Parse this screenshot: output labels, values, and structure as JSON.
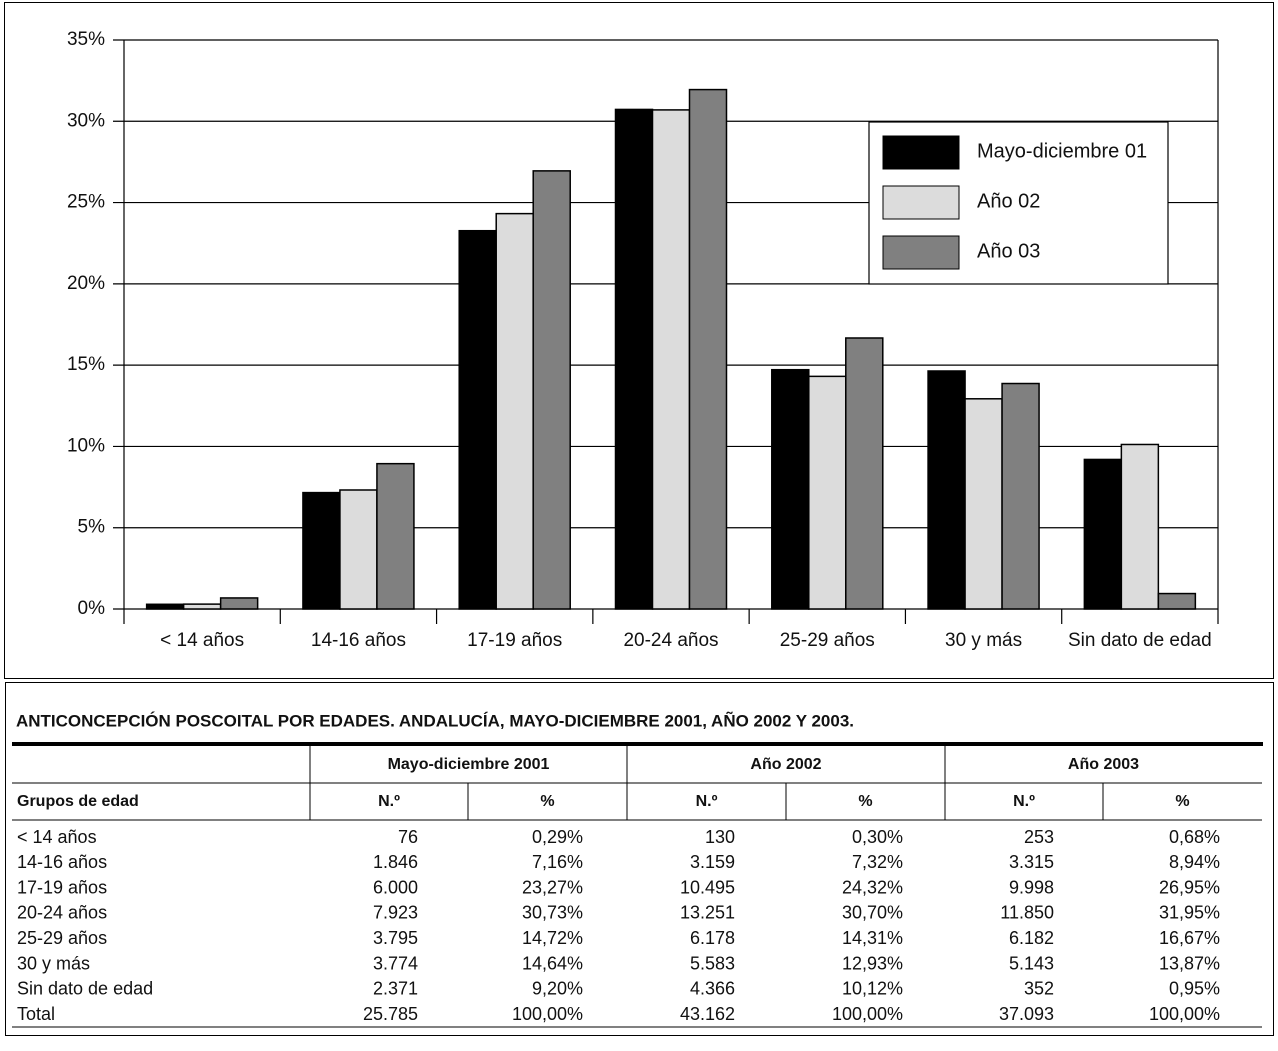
{
  "chart_data": {
    "type": "bar",
    "categories": [
      "< 14 años",
      "14-16 años",
      "17-19 años",
      "20-24 años",
      "25-29 años",
      "30 y más",
      "Sin dato de edad"
    ],
    "series": [
      {
        "name": "Mayo-diciembre 01",
        "color": "#000000",
        "values": [
          0.29,
          7.16,
          23.27,
          30.73,
          14.72,
          14.64,
          9.2
        ]
      },
      {
        "name": "Año 02",
        "color": "#dcdcdc",
        "values": [
          0.3,
          7.32,
          24.32,
          30.7,
          14.31,
          12.93,
          10.12
        ]
      },
      {
        "name": "Año 03",
        "color": "#808080",
        "values": [
          0.68,
          8.94,
          26.95,
          31.95,
          16.67,
          13.87,
          0.95
        ]
      }
    ],
    "ylim": [
      0,
      35
    ],
    "yticks": [
      {
        "value": 0,
        "label": "0%"
      },
      {
        "value": 5,
        "label": "5%"
      },
      {
        "value": 10,
        "label": "10%"
      },
      {
        "value": 15,
        "label": "15%"
      },
      {
        "value": 20,
        "label": "20%"
      },
      {
        "value": 25,
        "label": "25%"
      },
      {
        "value": 30,
        "label": "30%"
      },
      {
        "value": 35,
        "label": "35%"
      }
    ],
    "grid": true,
    "legend": "upper right"
  },
  "table": {
    "title": "ANTICONCEPCIÓN POSCOITAL POR EDADES. ANDALUCÍA, MAYO-DICIEMBRE 2001, AÑO 2002 Y 2003.",
    "group_headers": [
      "Mayo-diciembre 2001",
      "Año 2002",
      "Año 2003"
    ],
    "sub_headers": [
      "Grupos de edad",
      "N.º",
      "%",
      "N.º",
      "%",
      "N.º",
      "%"
    ],
    "rows": [
      [
        "< 14 años",
        "76",
        "0,29%",
        "130",
        "0,30%",
        "253",
        "0,68%"
      ],
      [
        "14-16 años",
        "1.846",
        "7,16%",
        "3.159",
        "7,32%",
        "3.315",
        "8,94%"
      ],
      [
        "17-19 años",
        "6.000",
        "23,27%",
        "10.495",
        "24,32%",
        "9.998",
        "26,95%"
      ],
      [
        "20-24 años",
        "7.923",
        "30,73%",
        "13.251",
        "30,70%",
        "11.850",
        "31,95%"
      ],
      [
        "25-29 años",
        "3.795",
        "14,72%",
        "6.178",
        "14,31%",
        "6.182",
        "16,67%"
      ],
      [
        "30 y más",
        "3.774",
        "14,64%",
        "5.583",
        "12,93%",
        "5.143",
        "13,87%"
      ],
      [
        "Sin dato de edad",
        "2.371",
        "9,20%",
        "4.366",
        "10,12%",
        "352",
        "0,95%"
      ],
      [
        "Total",
        "25.785",
        "100,00%",
        "43.162",
        "100,00%",
        "37.093",
        "100,00%"
      ]
    ]
  }
}
